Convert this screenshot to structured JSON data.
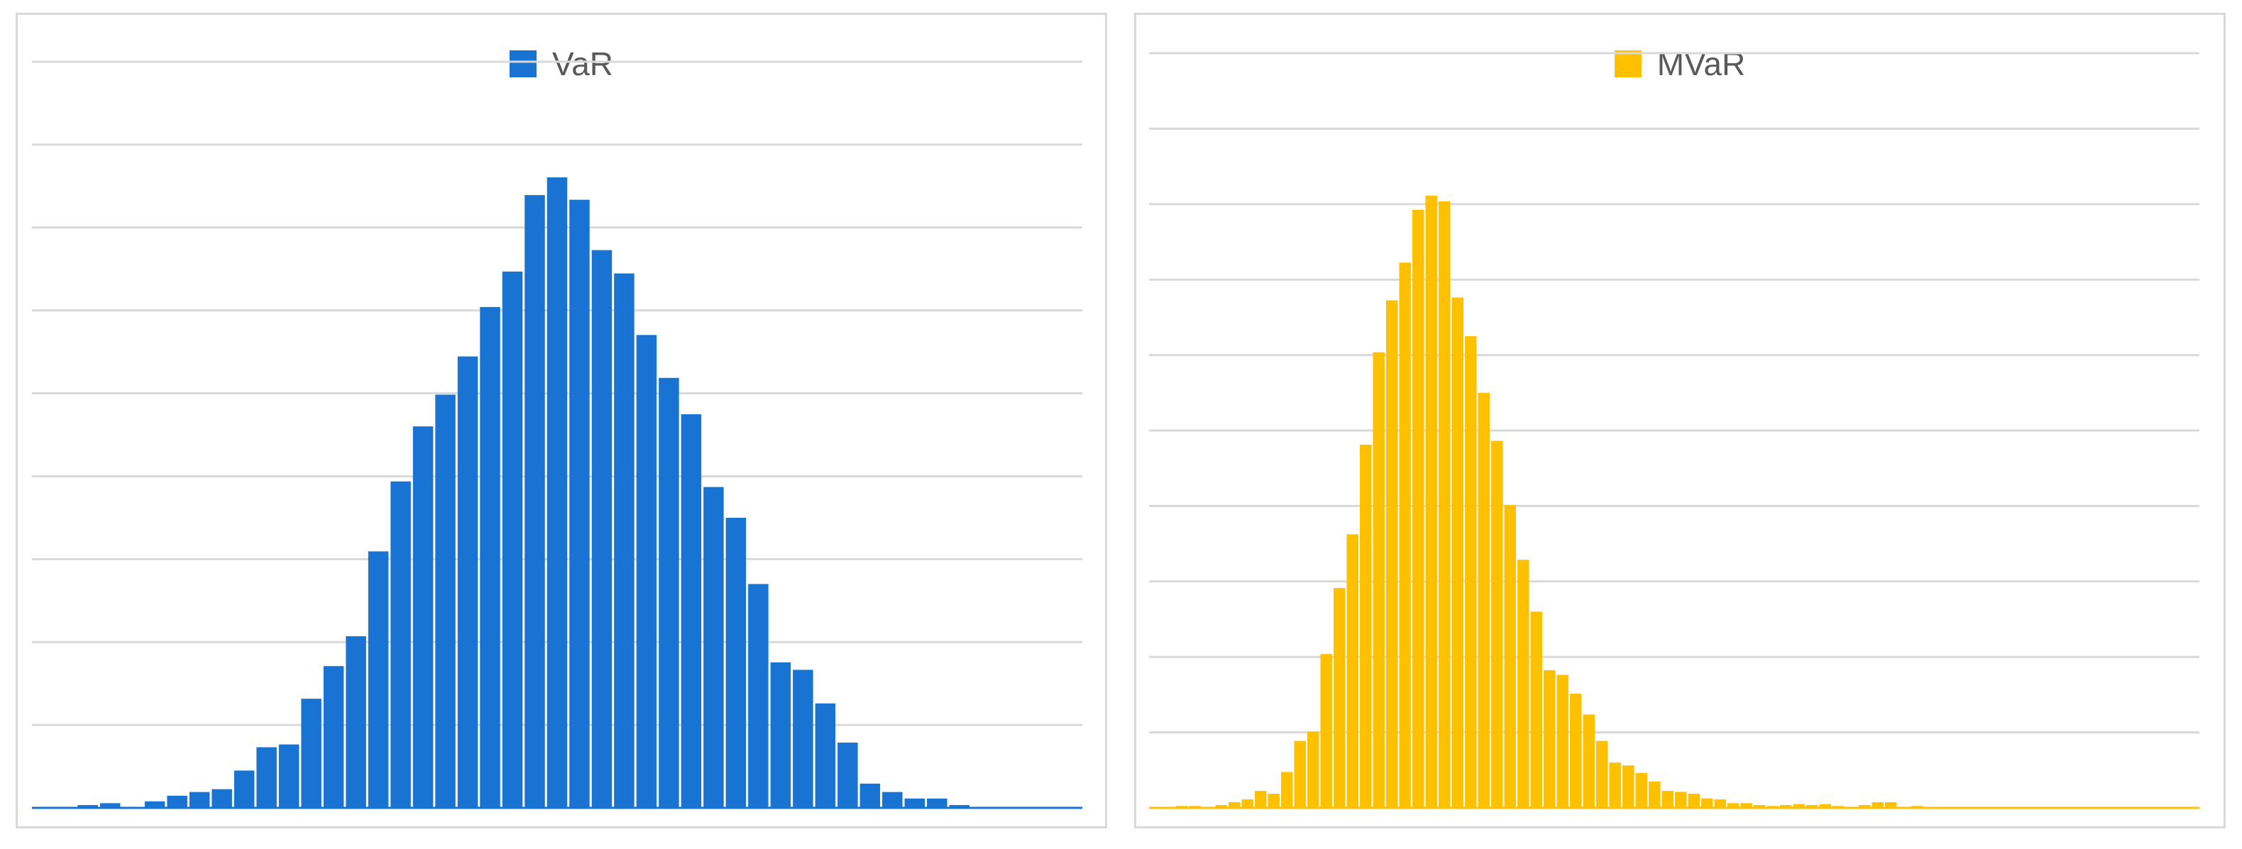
{
  "chart_data": [
    {
      "type": "bar",
      "series_name": "VaR",
      "color": "#1873D3",
      "gridlines": 9,
      "grid": true,
      "legend_position": "top",
      "values": [
        0.1,
        0.1,
        0.3,
        0.5,
        0.1,
        0.7,
        1.3,
        1.7,
        2.0,
        4.0,
        6.5,
        6.8,
        11.7,
        15.2,
        18.4,
        27.5,
        35.0,
        40.9,
        44.3,
        48.4,
        53.7,
        57.5,
        65.7,
        67.6,
        65.2,
        59.8,
        57.3,
        50.7,
        46.1,
        42.2,
        34.4,
        31.1,
        24.0,
        15.6,
        14.8,
        11.2,
        7.0,
        2.6,
        1.7,
        1.0,
        1.0,
        0.3,
        0.1,
        0.1,
        0.1,
        0.1,
        0.1
      ],
      "ylim": [
        0,
        80
      ]
    },
    {
      "type": "bar",
      "series_name": "MVaR",
      "color": "#FFC000",
      "gridlines": 10,
      "grid": true,
      "legend_position": "top",
      "values": [
        0.1,
        0.1,
        0.2,
        0.2,
        0.1,
        0.3,
        0.6,
        0.9,
        1.8,
        1.5,
        3.8,
        7.1,
        8.1,
        16.3,
        23.3,
        29.0,
        38.5,
        48.3,
        53.8,
        57.8,
        63.4,
        64.9,
        64.3,
        54.1,
        50.0,
        44.0,
        38.9,
        32.1,
        26.3,
        20.8,
        14.6,
        14.1,
        12.1,
        9.9,
        7.1,
        4.8,
        4.5,
        3.7,
        2.8,
        1.8,
        1.7,
        1.5,
        1.0,
        0.9,
        0.5,
        0.5,
        0.3,
        0.2,
        0.3,
        0.4,
        0.3,
        0.4,
        0.2,
        0.1,
        0.3,
        0.6,
        0.6,
        0.1,
        0.2,
        0.1,
        0.1,
        0.1,
        0.1,
        0.1,
        0.1,
        0.1,
        0.1,
        0.1,
        0.1,
        0.1,
        0.1,
        0.1,
        0.1,
        0.1,
        0.1,
        0.1,
        0.1,
        0.1,
        0.1,
        0.1
      ],
      "ylim": [
        0,
        80
      ]
    }
  ]
}
